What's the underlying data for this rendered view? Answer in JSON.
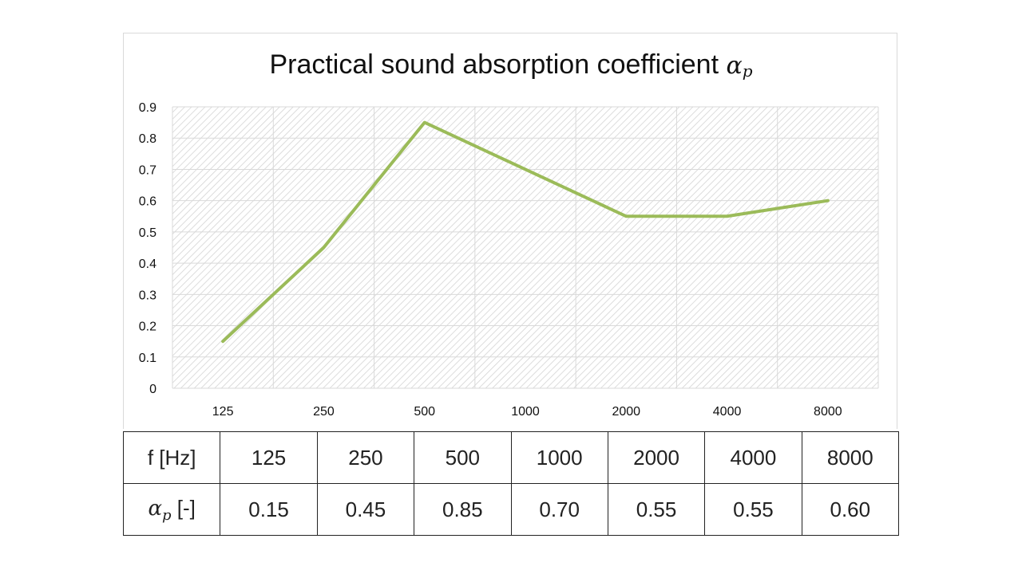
{
  "chart_data": {
    "type": "line",
    "title": "Practical sound absorption coefficient",
    "title_symbol": "α",
    "title_subscript": "p",
    "categories": [
      "125",
      "250",
      "500",
      "1000",
      "2000",
      "4000",
      "8000"
    ],
    "series": [
      {
        "values": [
          0.15,
          0.45,
          0.85,
          0.7,
          0.55,
          0.55,
          0.6
        ],
        "color": "#9bbb59"
      }
    ],
    "yticks": [
      "0",
      "0.1",
      "0.2",
      "0.3",
      "0.4",
      "0.5",
      "0.6",
      "0.7",
      "0.8",
      "0.9"
    ],
    "ylim": [
      0,
      0.9
    ],
    "grid": true,
    "plot_area_pattern": "diagonal-hatch"
  },
  "table": {
    "row1_label": "f [Hz]",
    "row2_symbol": "α",
    "row2_subscript": "p",
    "row2_unit": "[-]",
    "frequencies": [
      "125",
      "250",
      "500",
      "1000",
      "2000",
      "4000",
      "8000"
    ],
    "coefficients": [
      "0.15",
      "0.45",
      "0.85",
      "0.70",
      "0.55",
      "0.55",
      "0.60"
    ]
  }
}
